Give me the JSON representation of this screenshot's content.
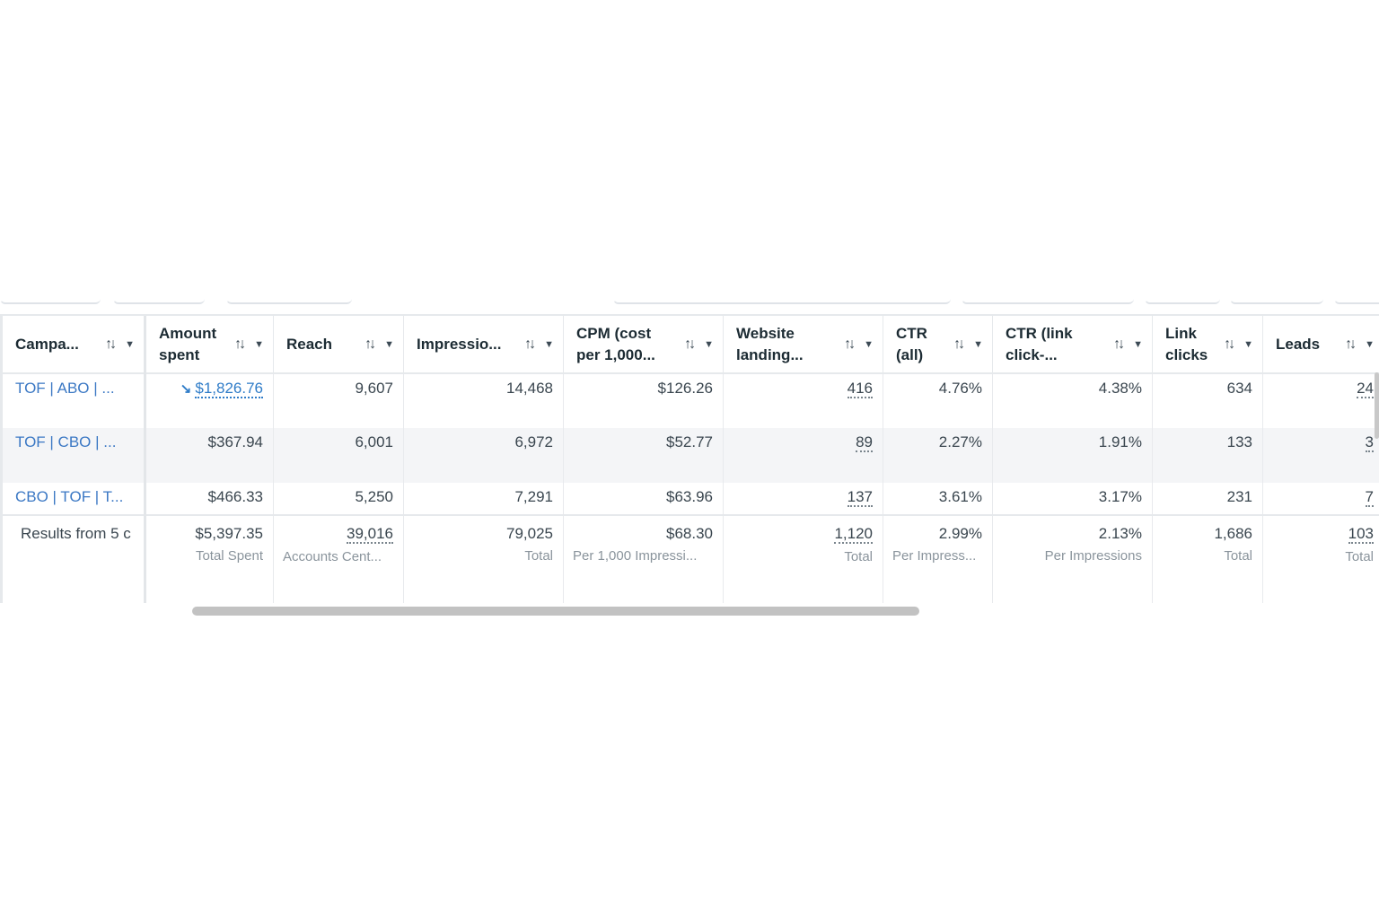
{
  "columns": [
    {
      "key": "campaign",
      "label": "Campa...",
      "sort_icon": "sort-arrows",
      "menu_icon": "caret-down"
    },
    {
      "key": "amount_spent",
      "label": "Amount spent",
      "sort_icon": "sort-arrows",
      "menu_icon": "caret-down"
    },
    {
      "key": "reach",
      "label": "Reach",
      "sort_icon": "sort-arrows",
      "menu_icon": "caret-down"
    },
    {
      "key": "impressions",
      "label": "Impressio...",
      "sort_icon": "sort-arrows",
      "menu_icon": "caret-down"
    },
    {
      "key": "cpm",
      "label": "CPM (cost per 1,000...",
      "sort_icon": "sort-arrows",
      "menu_icon": "caret-down"
    },
    {
      "key": "website_landing",
      "label": "Website landing...",
      "sort_icon": "sort-arrows",
      "menu_icon": "caret-down"
    },
    {
      "key": "ctr_all",
      "label": "CTR (all)",
      "sort_icon": "sort-arrows",
      "menu_icon": "caret-down"
    },
    {
      "key": "ctr_link",
      "label": "CTR (link click-...",
      "sort_icon": "sort-arrows",
      "menu_icon": "caret-down"
    },
    {
      "key": "link_clicks",
      "label": "Link clicks",
      "sort_icon": "sort-arrows",
      "menu_icon": "caret-down"
    },
    {
      "key": "leads",
      "label": "Leads",
      "sort_icon": "sort-arrows",
      "menu_icon": "caret-down"
    }
  ],
  "icons": {
    "sort": "↑↓",
    "caret": "▼",
    "trend": "↘"
  },
  "rows": [
    {
      "campaign": "TOF | ABO | ...",
      "amount_spent": "$1,826.76",
      "reach": "9,607",
      "impressions": "14,468",
      "cpm": "$126.26",
      "website_landing": "416",
      "ctr_all": "4.76%",
      "ctr_link": "4.38%",
      "link_clicks": "634",
      "leads": "24"
    },
    {
      "campaign": "TOF | CBO | ...",
      "amount_spent": "$367.94",
      "reach": "6,001",
      "impressions": "6,972",
      "cpm": "$52.77",
      "website_landing": "89",
      "ctr_all": "2.27%",
      "ctr_link": "1.91%",
      "link_clicks": "133",
      "leads": "3"
    },
    {
      "campaign": "CBO | TOF | T...",
      "amount_spent": "$466.33",
      "reach": "5,250",
      "impressions": "7,291",
      "cpm": "$63.96",
      "website_landing": "137",
      "ctr_all": "3.61%",
      "ctr_link": "3.17%",
      "link_clicks": "231",
      "leads": "7"
    }
  ],
  "totals": {
    "campaign": "Results from 5 c",
    "amount_spent": {
      "value": "$5,397.35",
      "sub": "Total Spent"
    },
    "reach": {
      "value": "39,016",
      "sub": "Accounts Cent..."
    },
    "impressions": {
      "value": "79,025",
      "sub": "Total"
    },
    "cpm": {
      "value": "$68.30",
      "sub": "Per 1,000 Impressi..."
    },
    "website_landing": {
      "value": "1,120",
      "sub": "Total"
    },
    "ctr_all": {
      "value": "2.99%",
      "sub": "Per Impress..."
    },
    "ctr_link": {
      "value": "2.13%",
      "sub": "Per Impressions"
    },
    "link_clicks": {
      "value": "1,686",
      "sub": "Total"
    },
    "leads": {
      "value": "103",
      "sub": "Total"
    }
  },
  "colors": {
    "link": "#3b78c4",
    "alt_row": "#f4f5f7",
    "border": "#e6e9ec",
    "scrollbar": "#c2c2c2"
  }
}
